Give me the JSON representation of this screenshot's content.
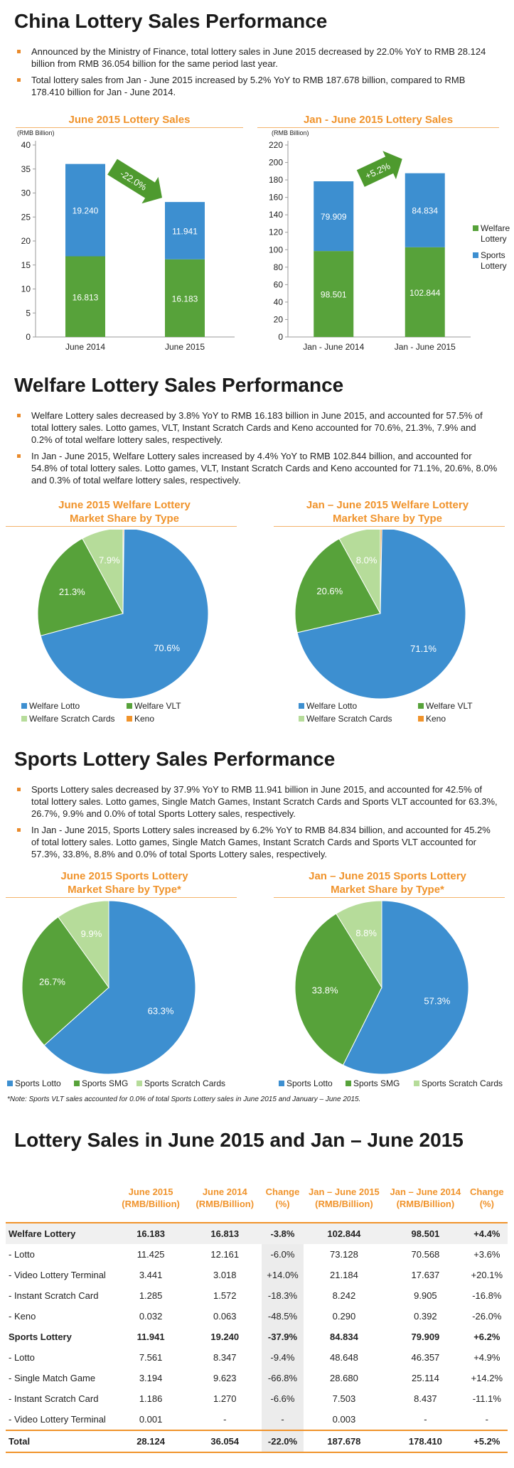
{
  "colors": {
    "orange": "#f0932b",
    "green": "#57a23a",
    "blue": "#3d8fd0",
    "light_green": "#b6dc9a",
    "keno_orange": "#f0932b"
  },
  "section1": {
    "title": "China Lottery Sales Performance",
    "bullets": [
      "Announced by the Ministry of Finance, total lottery sales in June 2015 decreased by 22.0% YoY to RMB 28.124 billion from RMB 36.054 billion for the same period last year.",
      "Total lottery sales from Jan - June 2015 increased by 5.2% YoY to RMB 187.678 billion, compared to RMB 178.410 billion for Jan - June 2014."
    ]
  },
  "section2": {
    "title": "Welfare Lottery Sales Performance",
    "bullets": [
      "Welfare Lottery sales decreased by 3.8% YoY to RMB 16.183 billion in June 2015, and accounted for 57.5% of total lottery sales. Lotto games, VLT, Instant Scratch Cards and Keno accounted for 70.6%, 21.3%, 7.9% and 0.2% of total welfare lottery sales, respectively.",
      "In Jan - June 2015, Welfare Lottery sales increased by 4.4% YoY to RMB 102.844 billion, and accounted for 54.8% of total lottery sales. Lotto games, VLT, Instant Scratch Cards and Keno accounted for 71.1%, 20.6%, 8.0% and 0.3% of total welfare lottery sales, respectively."
    ]
  },
  "section3": {
    "title": "Sports Lottery Sales Performance",
    "bullets": [
      "Sports Lottery sales decreased by 37.9% YoY to RMB 11.941 billion in June 2015, and accounted for 42.5% of total lottery sales. Lotto games, Single Match Games, Instant Scratch Cards and Sports VLT accounted for 63.3%, 26.7%, 9.9% and 0.0% of total Sports Lottery sales, respectively.",
      "In Jan - June 2015, Sports Lottery sales increased by 6.2% YoY to RMB 84.834 billion, and accounted for 45.2% of total lottery sales. Lotto games, Single Match Games, Instant Scratch Cards and Sports VLT accounted for 57.3%, 33.8%, 8.8% and 0.0% of total Sports Lottery sales, respectively."
    ],
    "note": "*Note: Sports VLT sales accounted for 0.0% of total Sports Lottery sales in June 2015 and January – June 2015."
  },
  "section4": {
    "title": "Lottery Sales in June 2015 and Jan – June 2015",
    "headers": [
      "",
      "June 2015 (RMB/Billion)",
      "June 2014 (RMB/Billion)",
      "Change (%)",
      "Jan – June 2015 (RMB/Billion)",
      "Jan – June 2014 (RMB/Billion)",
      "Change (%)"
    ],
    "rows": [
      {
        "cells": [
          "Welfare Lottery",
          "16.183",
          "16.813",
          "-3.8%",
          "102.844",
          "98.501",
          "+4.4%"
        ],
        "style": "bold shade"
      },
      {
        "cells": [
          "- Lotto",
          "11.425",
          "12.161",
          "-6.0%",
          "73.128",
          "70.568",
          "+3.6%"
        ],
        "style": ""
      },
      {
        "cells": [
          "- Video Lottery Terminal",
          "3.441",
          "3.018",
          "+14.0%",
          "21.184",
          "17.637",
          "+20.1%"
        ],
        "style": ""
      },
      {
        "cells": [
          "- Instant Scratch Card",
          "1.285",
          "1.572",
          "-18.3%",
          "8.242",
          "9.905",
          "-16.8%"
        ],
        "style": ""
      },
      {
        "cells": [
          "- Keno",
          "0.032",
          "0.063",
          "-48.5%",
          "0.290",
          "0.392",
          "-26.0%"
        ],
        "style": ""
      },
      {
        "cells": [
          "Sports Lottery",
          "11.941",
          "19.240",
          "-37.9%",
          "84.834",
          "79.909",
          "+6.2%"
        ],
        "style": "bold"
      },
      {
        "cells": [
          "- Lotto",
          "7.561",
          "8.347",
          "-9.4%",
          "48.648",
          "46.357",
          "+4.9%"
        ],
        "style": ""
      },
      {
        "cells": [
          "- Single Match Game",
          "3.194",
          "9.623",
          "-66.8%",
          "28.680",
          "25.114",
          "+14.2%"
        ],
        "style": ""
      },
      {
        "cells": [
          "- Instant Scratch Card",
          "1.186",
          "1.270",
          "-6.6%",
          "7.503",
          "8.437",
          "-11.1%"
        ],
        "style": ""
      },
      {
        "cells": [
          "- Video Lottery Terminal",
          "0.001",
          "-",
          "-",
          "0.003",
          "-",
          "-"
        ],
        "style": ""
      },
      {
        "cells": [
          "Total",
          "28.124",
          "36.054",
          "-22.0%",
          "187.678",
          "178.410",
          "+5.2%"
        ],
        "style": "bold total"
      }
    ]
  },
  "chart_data": [
    {
      "type": "bar",
      "stacked": true,
      "title": "June 2015 Lottery Sales",
      "ylabel": "(RMB Billion)",
      "categories": [
        "June 2014",
        "June 2015"
      ],
      "ylim": [
        0,
        40
      ],
      "yticks": [
        0,
        5,
        10,
        15,
        20,
        25,
        30,
        35,
        40
      ],
      "series": [
        {
          "name": "Welfare Lottery",
          "values": [
            16.813,
            16.183
          ],
          "labels": [
            "16.813",
            "16.183"
          ],
          "color": "#57a23a"
        },
        {
          "name": "Sports Lottery",
          "values": [
            19.24,
            11.941
          ],
          "labels": [
            "19.240",
            "11.941"
          ],
          "color": "#3d8fd0"
        }
      ],
      "arrow_label": "-22.0%",
      "arrow_dir": "down"
    },
    {
      "type": "bar",
      "stacked": true,
      "title": "Jan - June 2015 Lottery Sales",
      "ylabel": "(RMB Billion)",
      "categories": [
        "Jan - June 2014",
        "Jan - June 2015"
      ],
      "ylim": [
        0,
        220
      ],
      "yticks": [
        0,
        20,
        40,
        60,
        80,
        100,
        120,
        140,
        160,
        180,
        200,
        220
      ],
      "series": [
        {
          "name": "Welfare Lottery",
          "values": [
            98.501,
            102.844
          ],
          "labels": [
            "98.501",
            "102.844"
          ],
          "color": "#57a23a"
        },
        {
          "name": "Sports Lottery",
          "values": [
            79.909,
            84.834
          ],
          "labels": [
            "79.909",
            "84.834"
          ],
          "color": "#3d8fd0"
        }
      ],
      "arrow_label": "+5.2%",
      "arrow_dir": "up",
      "legend": [
        {
          "name": "Welfare Lottery",
          "color": "#57a23a"
        },
        {
          "name": "Sports Lottery",
          "color": "#3d8fd0"
        }
      ]
    },
    {
      "type": "pie",
      "title": "June 2015 Welfare Lottery Market Share by Type",
      "slices": [
        {
          "name": "Welfare Lotto",
          "value": 70.6,
          "label": "70.6%",
          "color": "#3d8fd0"
        },
        {
          "name": "Welfare VLT",
          "value": 21.3,
          "label": "21.3%",
          "color": "#57a23a"
        },
        {
          "name": "Welfare Scratch Cards",
          "value": 7.9,
          "label": "7.9%",
          "color": "#b6dc9a"
        },
        {
          "name": "Keno",
          "value": 0.2,
          "label": "0.2%",
          "color": "#f0932b"
        }
      ]
    },
    {
      "type": "pie",
      "title": "Jan – June 2015 Welfare Lottery Market Share by Type",
      "slices": [
        {
          "name": "Welfare Lotto",
          "value": 71.1,
          "label": "71.1%",
          "color": "#3d8fd0"
        },
        {
          "name": "Welfare VLT",
          "value": 20.6,
          "label": "20.6%",
          "color": "#57a23a"
        },
        {
          "name": "Welfare Scratch Cards",
          "value": 8.0,
          "label": "8.0%",
          "color": "#b6dc9a"
        },
        {
          "name": "Keno",
          "value": 0.3,
          "label": "0.3%",
          "color": "#f0932b"
        }
      ]
    },
    {
      "type": "pie",
      "title": "June 2015 Sports Lottery Market Share by Type*",
      "slices": [
        {
          "name": "Sports Lotto",
          "value": 63.3,
          "label": "63.3%",
          "color": "#3d8fd0"
        },
        {
          "name": "Sports SMG",
          "value": 26.7,
          "label": "26.7%",
          "color": "#57a23a"
        },
        {
          "name": "Sports Scratch Cards",
          "value": 9.9,
          "label": "9.9%",
          "color": "#b6dc9a"
        },
        {
          "name": "Sports VLT",
          "value": 0.0,
          "label": "",
          "color": "#f0932b"
        }
      ]
    },
    {
      "type": "pie",
      "title": "Jan – June 2015 Sports Lottery Market Share by Type*",
      "slices": [
        {
          "name": "Sports Lotto",
          "value": 57.3,
          "label": "57.3%",
          "color": "#3d8fd0"
        },
        {
          "name": "Sports SMG",
          "value": 33.8,
          "label": "33.8%",
          "color": "#57a23a"
        },
        {
          "name": "Sports Scratch Cards",
          "value": 8.8,
          "label": "8.8%",
          "color": "#b6dc9a"
        },
        {
          "name": "Sports VLT",
          "value": 0.0,
          "label": "",
          "color": "#f0932b"
        }
      ]
    }
  ]
}
